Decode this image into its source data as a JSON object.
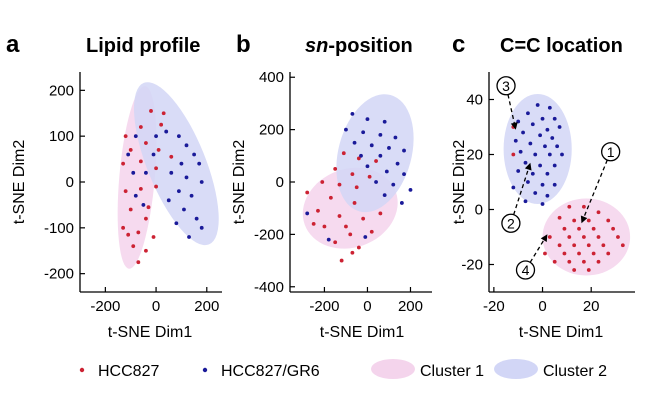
{
  "colors": {
    "hcc827": "#cc2233",
    "gr6": "#1a1a99",
    "cluster1_fill": "#f4d4ec",
    "cluster2_fill": "#d2d6f6",
    "axis": "#000000"
  },
  "panels": [
    {
      "letter": "a",
      "title": "Lipid profile",
      "title_italic": "",
      "title_rest": "",
      "xlabel": "t-SNE Dim1",
      "ylabel": "t-SNE Dim2"
    },
    {
      "letter": "b",
      "title": "",
      "title_italic": "sn",
      "title_rest": "-position",
      "xlabel": "t-SNE Dim1",
      "ylabel": "t-SNE Dim2"
    },
    {
      "letter": "c",
      "title": "C=C location",
      "title_italic": "",
      "title_rest": "",
      "xlabel": "t-SNE Dim1",
      "ylabel": "t-SNE Dim2"
    }
  ],
  "legend": {
    "items": [
      {
        "label": "HCC827",
        "kind": "dot",
        "color": "#cc2233"
      },
      {
        "label": "HCC827/GR6",
        "kind": "dot",
        "color": "#1a1a99"
      },
      {
        "label": "Cluster 1",
        "kind": "ellipse",
        "color": "#f4d4ec"
      },
      {
        "label": "Cluster 2",
        "kind": "ellipse",
        "color": "#d2d6f6"
      }
    ]
  },
  "chart_data": [
    {
      "type": "scatter",
      "title": "Lipid profile",
      "xlabel": "t-SNE Dim1",
      "ylabel": "t-SNE Dim2",
      "xlim": [
        -300,
        260
      ],
      "ylim": [
        -240,
        240
      ],
      "xticks": [
        -200,
        0,
        200
      ],
      "xtick_labels": [
        "-200",
        "0",
        "200"
      ],
      "yticks": [
        -200,
        -100,
        0,
        100,
        200
      ],
      "yticks_labels": [
        "-200",
        "-100",
        "0",
        "100",
        "200"
      ],
      "clusters": [
        {
          "name": "Cluster 1",
          "center": [
            -75,
            10
          ],
          "rx": 70,
          "ry": 200,
          "angle": 5
        },
        {
          "name": "Cluster 2",
          "center": [
            80,
            40
          ],
          "rx": 115,
          "ry": 190,
          "angle": -22
        }
      ],
      "series": [
        {
          "name": "HCC827",
          "points": [
            [
              -20,
              155
            ],
            [
              30,
              150
            ],
            [
              -60,
              120
            ],
            [
              20,
              125
            ],
            [
              -120,
              100
            ],
            [
              -100,
              70
            ],
            [
              -40,
              85
            ],
            [
              10,
              70
            ],
            [
              60,
              55
            ],
            [
              -130,
              40
            ],
            [
              -60,
              45
            ],
            [
              0,
              30
            ],
            [
              -120,
              -20
            ],
            [
              -60,
              -15
            ],
            [
              0,
              -10
            ],
            [
              -100,
              -60
            ],
            [
              -40,
              -80
            ],
            [
              -130,
              -100
            ],
            [
              -70,
              -110
            ],
            [
              -10,
              -120
            ],
            [
              -90,
              -140
            ],
            [
              -40,
              -150
            ],
            [
              -70,
              -175
            ],
            [
              -110,
              -115
            ],
            [
              -30,
              -55
            ]
          ]
        },
        {
          "name": "HCC827/GR6",
          "points": [
            [
              -110,
              60
            ],
            [
              -80,
              100
            ],
            [
              -90,
              20
            ],
            [
              -40,
              20
            ],
            [
              -50,
              -50
            ],
            [
              40,
              110
            ],
            [
              90,
              100
            ],
            [
              120,
              80
            ],
            [
              150,
              60
            ],
            [
              170,
              40
            ],
            [
              100,
              40
            ],
            [
              60,
              20
            ],
            [
              120,
              10
            ],
            [
              180,
              0
            ],
            [
              90,
              -20
            ],
            [
              140,
              -30
            ],
            [
              50,
              -40
            ],
            [
              110,
              -60
            ],
            [
              160,
              -80
            ],
            [
              80,
              -90
            ],
            [
              180,
              -100
            ],
            [
              130,
              -120
            ],
            [
              0,
              100
            ],
            [
              -10,
              60
            ],
            [
              -80,
              -30
            ]
          ]
        }
      ]
    },
    {
      "type": "scatter",
      "title": "sn-position",
      "xlabel": "t-SNE Dim1",
      "ylabel": "t-SNE Dim2",
      "xlim": [
        -360,
        300
      ],
      "ylim": [
        -420,
        420
      ],
      "xticks": [
        -200,
        0,
        200
      ],
      "xtick_labels": [
        "-200",
        "0",
        "200"
      ],
      "yticks": [
        -400,
        -200,
        0,
        200,
        400
      ],
      "yticks_labels": [
        "-400",
        "-200",
        "0",
        "200",
        "400"
      ],
      "clusters": [
        {
          "name": "Cluster 1",
          "center": [
            -80,
            -100
          ],
          "rx": 225,
          "ry": 150,
          "angle": -20
        },
        {
          "name": "Cluster 2",
          "center": [
            35,
            110
          ],
          "rx": 170,
          "ry": 230,
          "angle": 15
        }
      ],
      "series": [
        {
          "name": "HCC827",
          "points": [
            [
              -110,
              110
            ],
            [
              -40,
              90
            ],
            [
              40,
              80
            ],
            [
              -150,
              50
            ],
            [
              -70,
              30
            ],
            [
              10,
              20
            ],
            [
              -210,
              0
            ],
            [
              -130,
              -10
            ],
            [
              -50,
              -20
            ],
            [
              -280,
              -40
            ],
            [
              -170,
              -60
            ],
            [
              -60,
              -80
            ],
            [
              -230,
              -110
            ],
            [
              -130,
              -130
            ],
            [
              -20,
              -140
            ],
            [
              -200,
              -170
            ],
            [
              -80,
              -200
            ],
            [
              20,
              -190
            ],
            [
              -150,
              -230
            ],
            [
              -40,
              -250
            ],
            [
              -120,
              -300
            ],
            [
              -70,
              -270
            ],
            [
              -250,
              -160
            ],
            [
              -100,
              -170
            ],
            [
              60,
              -120
            ]
          ]
        },
        {
          "name": "HCC827/GR6",
          "points": [
            [
              -70,
              260
            ],
            [
              0,
              240
            ],
            [
              80,
              230
            ],
            [
              -100,
              200
            ],
            [
              -20,
              190
            ],
            [
              60,
              180
            ],
            [
              130,
              170
            ],
            [
              -60,
              150
            ],
            [
              20,
              140
            ],
            [
              100,
              130
            ],
            [
              170,
              120
            ],
            [
              -30,
              100
            ],
            [
              60,
              100
            ],
            [
              140,
              70
            ],
            [
              0,
              60
            ],
            [
              90,
              40
            ],
            [
              170,
              30
            ],
            [
              40,
              0
            ],
            [
              120,
              -10
            ],
            [
              200,
              -30
            ],
            [
              80,
              -50
            ],
            [
              160,
              -80
            ],
            [
              -280,
              -120
            ],
            [
              -180,
              -220
            ],
            [
              -10,
              -210
            ]
          ]
        }
      ]
    },
    {
      "type": "scatter",
      "title": "C=C location",
      "xlabel": "t-SNE Dim1",
      "ylabel": "t-SNE Dim2",
      "xlim": [
        -22,
        38
      ],
      "ylim": [
        -30,
        50
      ],
      "xticks": [
        -20,
        0,
        20
      ],
      "xtick_labels": [
        "-20",
        "0",
        "20"
      ],
      "yticks": [
        -20,
        0,
        20,
        40
      ],
      "yticks_labels": [
        "-20",
        "0",
        "20",
        "40"
      ],
      "clusters": [
        {
          "name": "Cluster 2",
          "center": [
            -2,
            22
          ],
          "rx": 14,
          "ry": 20,
          "angle": 0
        },
        {
          "name": "Cluster 1",
          "center": [
            18,
            -10
          ],
          "rx": 18,
          "ry": 14,
          "angle": 0
        }
      ],
      "annotations": [
        {
          "label": "1",
          "tip": [
            16,
            -5
          ],
          "circle": [
            28,
            21
          ]
        },
        {
          "label": "2",
          "tip": [
            -5,
            17
          ],
          "circle": [
            -13,
            -5
          ]
        },
        {
          "label": "3",
          "tip": [
            -11,
            29
          ],
          "circle": [
            -15,
            45
          ]
        },
        {
          "label": "4",
          "tip": [
            2,
            -9
          ],
          "circle": [
            -7,
            -22
          ]
        }
      ],
      "series": [
        {
          "name": "HCC827",
          "points": [
            [
              -12,
              30
            ],
            [
              11,
              1
            ],
            [
              17,
              1
            ],
            [
              23,
              -1
            ],
            [
              7,
              -3
            ],
            [
              13,
              -4
            ],
            [
              19,
              -4
            ],
            [
              27,
              -4
            ],
            [
              9,
              -7
            ],
            [
              15,
              -7
            ],
            [
              21,
              -7
            ],
            [
              29,
              -7
            ],
            [
              3,
              -10
            ],
            [
              11,
              -10
            ],
            [
              17,
              -10
            ],
            [
              23,
              -10
            ],
            [
              31,
              -10
            ],
            [
              7,
              -13
            ],
            [
              13,
              -13
            ],
            [
              19,
              -13
            ],
            [
              25,
              -13
            ],
            [
              33,
              -13
            ],
            [
              1,
              -16
            ],
            [
              9,
              -16
            ],
            [
              15,
              -16
            ],
            [
              21,
              -16
            ],
            [
              27,
              -16
            ],
            [
              5,
              -19
            ],
            [
              11,
              -19
            ],
            [
              17,
              -19
            ],
            [
              23,
              -19
            ],
            [
              13,
              -22
            ],
            [
              19,
              -22
            ],
            [
              -12,
              20
            ]
          ]
        },
        {
          "name": "HCC827/GR6",
          "points": [
            [
              -2,
              38
            ],
            [
              3,
              37
            ],
            [
              -6,
              35
            ],
            [
              0,
              33
            ],
            [
              5,
              33
            ],
            [
              -10,
              32
            ],
            [
              -4,
              31
            ],
            [
              2,
              29
            ],
            [
              7,
              30
            ],
            [
              -8,
              28
            ],
            [
              -1,
              27
            ],
            [
              4,
              26
            ],
            [
              -11,
              25
            ],
            [
              -5,
              24
            ],
            [
              1,
              23
            ],
            [
              6,
              23
            ],
            [
              -9,
              21
            ],
            [
              -3,
              20
            ],
            [
              3,
              20
            ],
            [
              8,
              20
            ],
            [
              -7,
              17
            ],
            [
              -1,
              16
            ],
            [
              5,
              16
            ],
            [
              -10,
              14
            ],
            [
              -4,
              13
            ],
            [
              2,
              13
            ],
            [
              -6,
              10
            ],
            [
              0,
              9
            ],
            [
              5,
              9
            ],
            [
              -3,
              6
            ],
            [
              2,
              5
            ],
            [
              -7,
              3
            ],
            [
              0,
              2
            ],
            [
              -12,
              8
            ]
          ]
        }
      ]
    }
  ]
}
